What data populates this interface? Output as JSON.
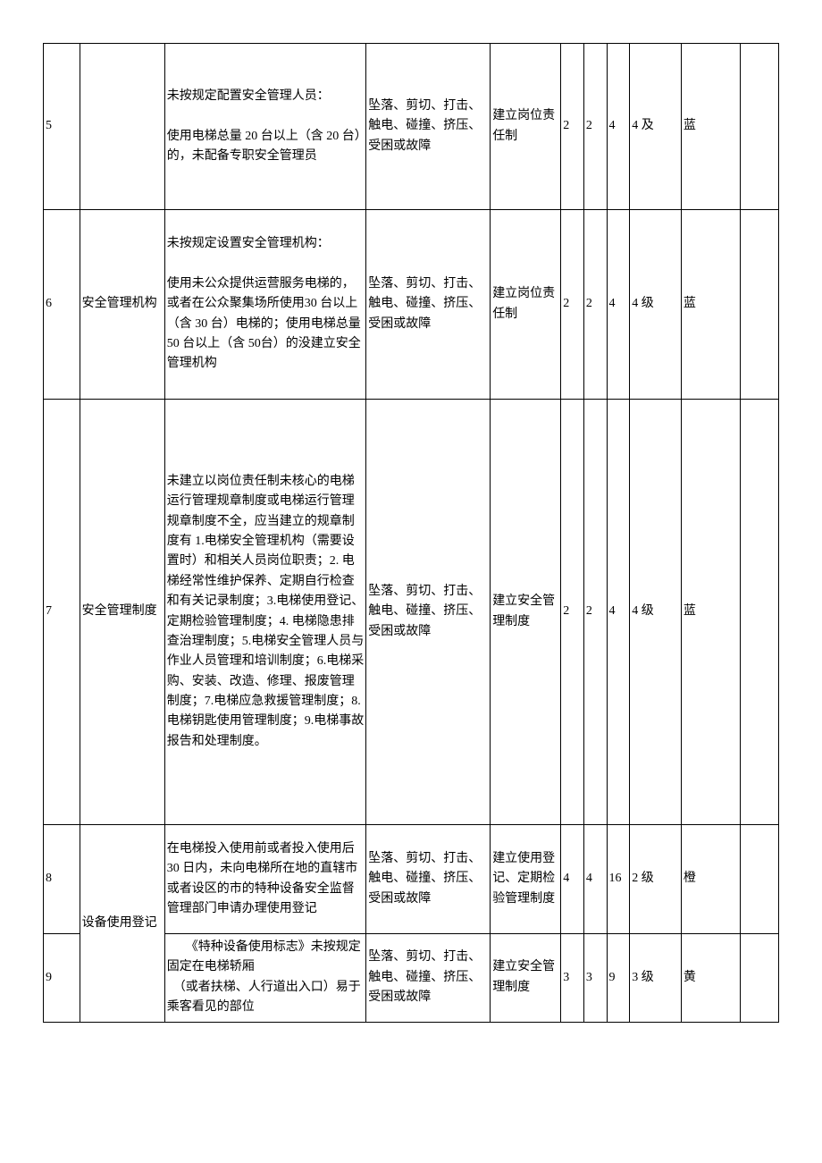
{
  "colors": {
    "text": "#000000",
    "border": "#000000",
    "background": "#ffffff"
  },
  "font": {
    "family": "SimSun",
    "size": 14
  },
  "rows": [
    {
      "num": "5",
      "category": "",
      "description": "未按规定配置安全管理人员：\n\n使用电梯总量 20 台以上（含 20 台）的，未配备专职安全管理员",
      "risk": "坠落、剪切、打击、触电、碰撞、挤压、受困或故障",
      "measure": "建立岗位责任制",
      "a": "2",
      "b": "2",
      "c": "4",
      "level": "4 及",
      "color": "蓝",
      "last": ""
    },
    {
      "num": "6",
      "category": "安全管理机构",
      "description": "未按规定设置安全管理机构：\n\n使用未公众提供运营服务电梯的，或者在公众聚集场所使用30 台以上（含 30 台）电梯的；使用电梯总量 50 台以上（含 50台）的没建立安全管理机构",
      "risk": "坠落、剪切、打击、触电、碰撞、挤压、受困或故障",
      "measure": "建立岗位责任制",
      "a": "2",
      "b": "2",
      "c": "4",
      "level": "4 级",
      "color": "蓝",
      "last": ""
    },
    {
      "num": "7",
      "category": "安全管理制度",
      "description": "未建立以岗位责任制未核心的电梯运行管理规章制度或电梯运行管理规章制度不全，应当建立的规章制度有 1.电梯安全管理机构（需要设置时）和相关人员岗位职责；2. 电梯经常性维护保养、定期自行检查和有关记录制度；3.电梯使用登记、定期检验管理制度；4. 电梯隐患排查治理制度；5.电梯安全管理人员与作业人员管理和培训制度；6.电梯采购、安装、改造、修理、报废管理制度；7.电梯应急救援管理制度；8.电梯钥匙使用管理制度；9.电梯事故报告和处理制度。",
      "risk": "坠落、剪切、打击、触电、碰撞、挤压、受困或故障",
      "measure": "建立安全管理制度",
      "a": "2",
      "b": "2",
      "c": "4",
      "level": "4 级",
      "color": "蓝",
      "last": ""
    },
    {
      "num": "8",
      "category": "设备使用登记",
      "category_rowspan": 2,
      "description": "在电梯投入使用前或者投入使用后 30 日内，未向电梯所在地的直辖市或者设区的市的特种设备安全监督管理部门申请办理使用登记",
      "risk": "坠落、剪切、打击、触电、碰撞、挤压、受困或故障",
      "measure": "建立使用登记、定期检验管理制度",
      "a": "4",
      "b": "4",
      "c": "16",
      "level": "2 级",
      "color": "橙",
      "last": ""
    },
    {
      "num": "9",
      "description": "　　《特种设备使用标志》未按规定固定在电梯轿厢\n　（或者扶梯、人行道出入口）易于乘客看见的部位",
      "risk": "坠落、剪切、打击、触电、碰撞、挤压、受困或故障",
      "measure": "建立安全管理制度",
      "a": "3",
      "b": "3",
      "c": "9",
      "level": "3 级",
      "color": "黄",
      "last": ""
    }
  ]
}
